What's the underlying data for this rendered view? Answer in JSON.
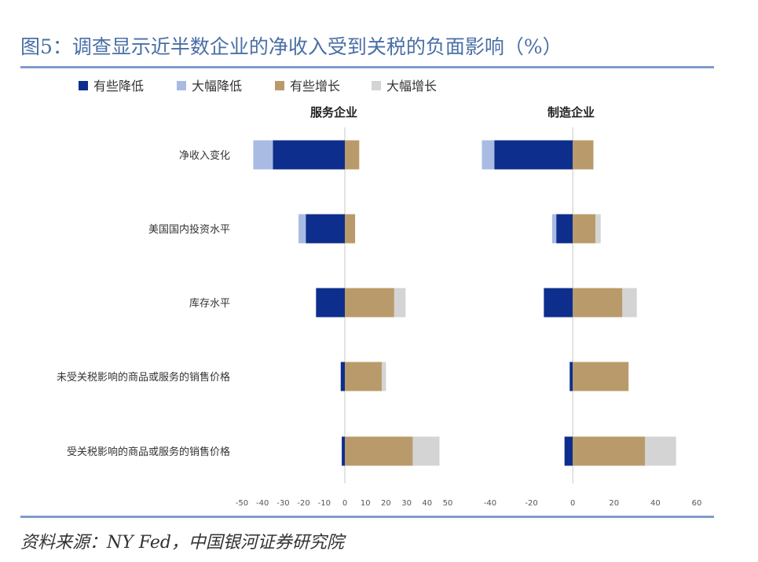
{
  "page": {
    "title": "图5：调查显示近半数企业的净收入受到关税的负面影响（%）",
    "source": "资料来源：NY Fed，中国银河证券研究院"
  },
  "chart_data": {
    "type": "bar",
    "stacked": true,
    "orientation": "horizontal",
    "legend_position": "top-left",
    "categories": [
      "净收入变化",
      "美国国内投资水平",
      "库存水平",
      "未受关税影响的商品或服务的销售价格",
      "受关税影响的商品或服务的销售价格"
    ],
    "series_meta": [
      {
        "name": "有些降低",
        "color": "#0d2e8c"
      },
      {
        "name": "大幅降低",
        "color": "#a9bbe3"
      },
      {
        "name": "有些增长",
        "color": "#b99b6b"
      },
      {
        "name": "大幅增长",
        "color": "#d4d4d4"
      }
    ],
    "panels": [
      {
        "title": "服务企业",
        "xlim": [
          -50,
          50
        ],
        "xticks": [
          "-50",
          "-40",
          "-30",
          "-20",
          "-10",
          "0",
          "10",
          "20",
          "30",
          "40",
          "50"
        ],
        "series": [
          {
            "name": "有些降低",
            "values": [
              -35,
              -19,
              -14,
              -2,
              -1.5
            ]
          },
          {
            "name": "大幅降低",
            "values": [
              -9.5,
              -3.5,
              0,
              0,
              0
            ]
          },
          {
            "name": "有些增长",
            "values": [
              7,
              5,
              24,
              18,
              33
            ]
          },
          {
            "name": "大幅增长",
            "values": [
              0,
              0,
              5.5,
              2,
              13
            ]
          }
        ]
      },
      {
        "title": "制造企业",
        "xlim": [
          -40,
          60
        ],
        "xticks": [
          "-40",
          "-20",
          "0",
          "20",
          "40",
          "60"
        ],
        "series": [
          {
            "name": "有些降低",
            "values": [
              -38,
              -8,
              -14,
              -1.5,
              -4
            ]
          },
          {
            "name": "大幅降低",
            "values": [
              -6,
              -2,
              0,
              0,
              0
            ]
          },
          {
            "name": "有些增长",
            "values": [
              10,
              11,
              24,
              27,
              35
            ]
          },
          {
            "name": "大幅增长",
            "values": [
              0,
              2.5,
              7,
              0,
              15
            ]
          }
        ]
      }
    ]
  }
}
